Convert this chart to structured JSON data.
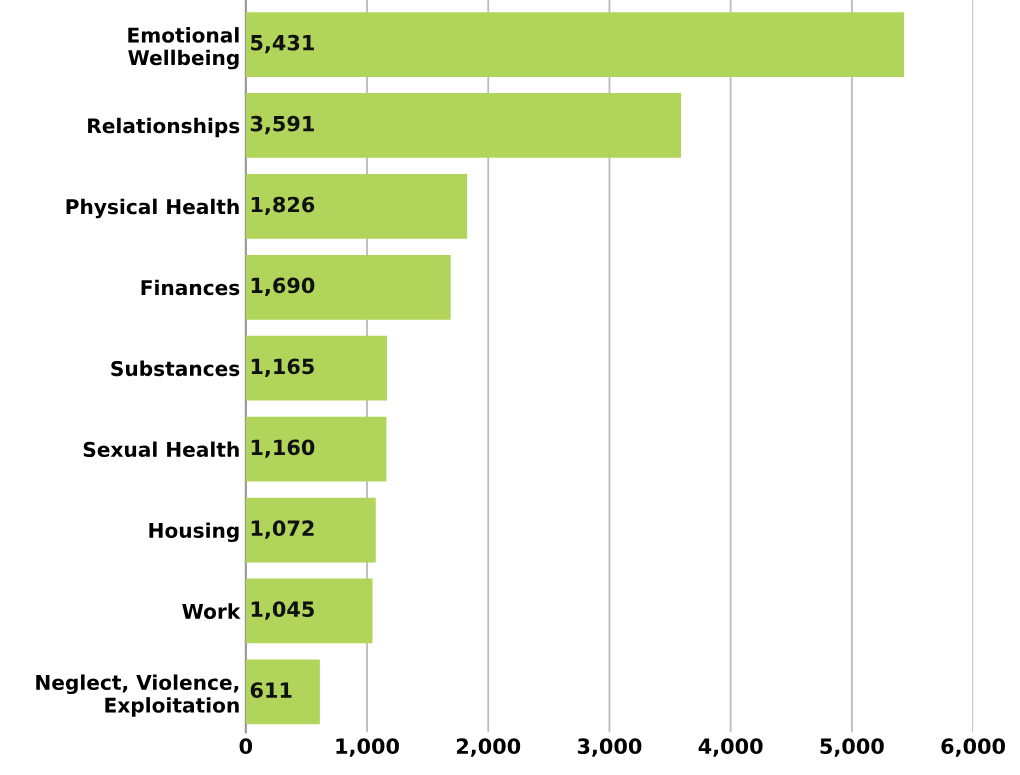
{
  "chart_data": {
    "type": "bar",
    "orientation": "horizontal",
    "categories": [
      "Emotional\nWellbeing",
      "Relationships",
      "Physical Health",
      "Finances",
      "Substances",
      "Sexual Health",
      "Housing",
      "Work",
      "Neglect, Violence,\nExploitation"
    ],
    "values": [
      5431,
      3591,
      1826,
      1690,
      1165,
      1160,
      1072,
      1045,
      611
    ],
    "value_labels": [
      "5,431",
      "3,591",
      "1,826",
      "1,690",
      "1,165",
      "1,160",
      "1,072",
      "1,045",
      "611"
    ],
    "color": "#b1d45b",
    "xlim": [
      0,
      6000
    ],
    "xticks": [
      {
        "value": 0,
        "label": "0"
      },
      {
        "value": 1000,
        "label": "1,000"
      },
      {
        "value": 2000,
        "label": "2,000"
      },
      {
        "value": 3000,
        "label": "3,000"
      },
      {
        "value": 4000,
        "label": "4,000"
      },
      {
        "value": 5000,
        "label": "5,000"
      },
      {
        "value": 6000,
        "label": "6,000"
      }
    ],
    "grid": "x",
    "legend": false
  }
}
